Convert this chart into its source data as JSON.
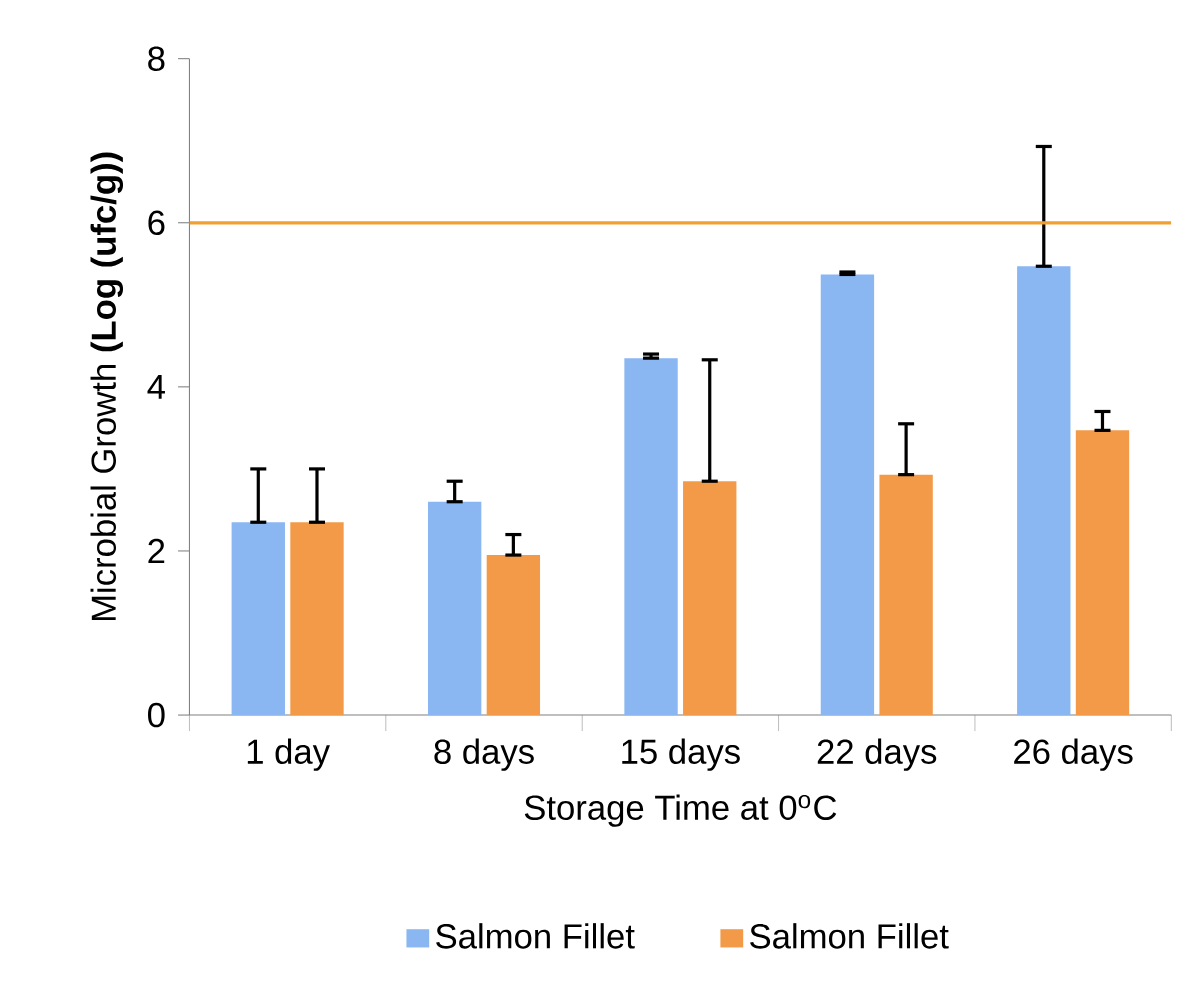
{
  "chart_data": {
    "type": "bar",
    "xlabel": "Storage Time at 0$^{o}$C",
    "ylabel": "Microbial Growth  **(Log (ufc/g))**",
    "categories": [
      "1 day",
      "8 days",
      "15 days",
      "22 days",
      "26 days"
    ],
    "series": [
      {
        "name": "Salmon Fillet",
        "color": "#8ab6f2",
        "values": [
          2.35,
          2.6,
          4.35,
          5.37,
          5.47
        ],
        "errors": [
          [
            2.35,
            3.0
          ],
          [
            2.6,
            2.85
          ],
          [
            4.35,
            4.4
          ],
          [
            5.37,
            5.4
          ],
          [
            5.47,
            6.93
          ]
        ]
      },
      {
        "name": "Salmon Fillet",
        "color": "#f39a48",
        "values": [
          2.35,
          1.95,
          2.85,
          2.93,
          3.47
        ],
        "errors": [
          [
            2.35,
            3.0
          ],
          [
            1.95,
            2.2
          ],
          [
            2.85,
            4.33
          ],
          [
            2.93,
            3.55
          ],
          [
            3.47,
            3.7
          ]
        ]
      }
    ],
    "ylim": [
      0,
      8
    ],
    "yticks": [
      0,
      2,
      4,
      6,
      8
    ],
    "ref_lines": [
      {
        "axis": "y",
        "value": 6,
        "color": "#f0a030"
      }
    ],
    "grid": false,
    "legend": "bottom"
  }
}
